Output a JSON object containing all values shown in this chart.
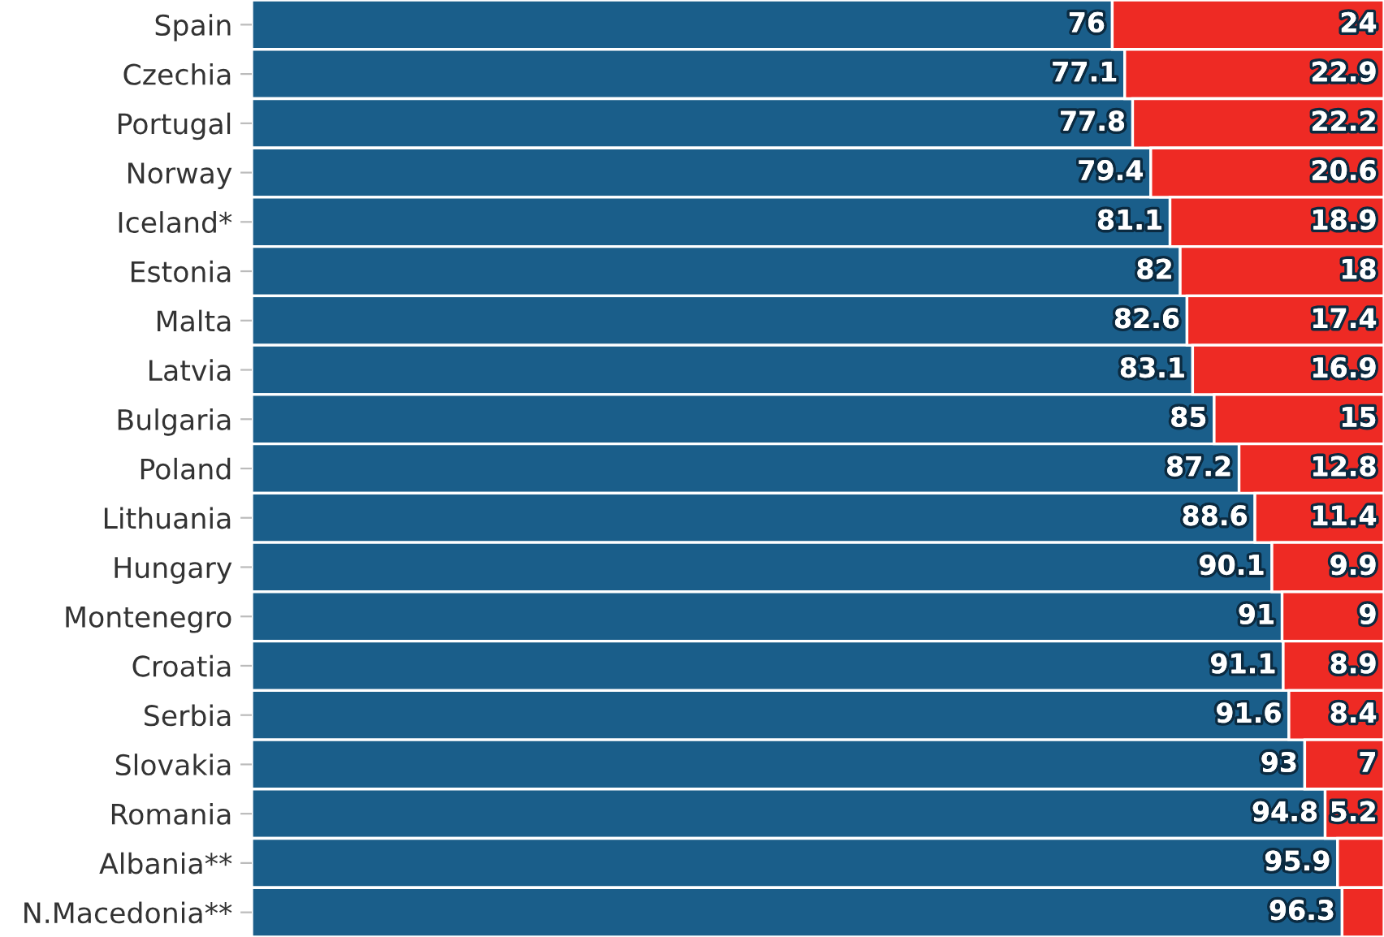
{
  "chart_data": {
    "type": "bar",
    "orientation": "horizontal",
    "stacked": true,
    "categories": [
      "Spain",
      "Czechia",
      "Portugal",
      "Norway",
      "Iceland*",
      "Estonia",
      "Malta",
      "Latvia",
      "Bulgaria",
      "Poland",
      "Lithuania",
      "Hungary",
      "Montenegro",
      "Croatia",
      "Serbia",
      "Slovakia",
      "Romania",
      "Albania**",
      "N.Macedonia**"
    ],
    "series": [
      {
        "color": "#1a5e8a",
        "values": [
          76,
          77.1,
          77.8,
          79.4,
          81.1,
          82,
          82.6,
          83.1,
          85,
          87.2,
          88.6,
          90.1,
          91,
          91.1,
          91.6,
          93,
          94.8,
          95.9,
          96.3
        ],
        "value_labels": [
          "76",
          "77.1",
          "77.8",
          "79.4",
          "81.1",
          "82",
          "82.6",
          "83.1",
          "85",
          "87.2",
          "88.6",
          "90.1",
          "91",
          "91.1",
          "91.6",
          "93",
          "94.8",
          "95.9",
          "96.3"
        ]
      },
      {
        "color": "#ee2a24",
        "values": [
          24,
          22.9,
          22.2,
          20.6,
          18.9,
          18,
          17.4,
          16.9,
          15,
          12.8,
          11.4,
          9.9,
          9,
          8.9,
          8.4,
          7,
          5.2,
          4.1,
          3.7
        ],
        "value_labels": [
          "24",
          "22.9",
          "22.2",
          "20.6",
          "18.9",
          "18",
          "17.4",
          "16.9",
          "15",
          "12.8",
          "11.4",
          "9.9",
          "9",
          "8.9",
          "8.4",
          "7",
          "5.2",
          null,
          null
        ]
      }
    ],
    "xlim": [
      0,
      100
    ],
    "tick_labels": "y",
    "grid": false,
    "legend": false
  }
}
